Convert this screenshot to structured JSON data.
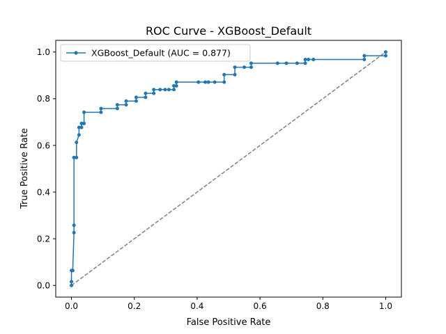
{
  "chart_data": {
    "type": "line",
    "title": "ROC Curve - XGBoost_Default",
    "xlabel": "False Positive Rate",
    "ylabel": "True Positive Rate",
    "xlim": [
      -0.05,
      1.05
    ],
    "ylim": [
      -0.05,
      1.05
    ],
    "xticks": [
      0.0,
      0.2,
      0.4,
      0.6,
      0.8,
      1.0
    ],
    "yticks": [
      0.0,
      0.2,
      0.4,
      0.6,
      0.8,
      1.0
    ],
    "xtick_labels": [
      "0.0",
      "0.2",
      "0.4",
      "0.6",
      "0.8",
      "1.0"
    ],
    "ytick_labels": [
      "0.0",
      "0.2",
      "0.4",
      "0.6",
      "0.8",
      "1.0"
    ],
    "grid": false,
    "legend_position": "top-left",
    "series": [
      {
        "name": "XGBoost_Default (AUC = 0.877)",
        "color": "#1f77b4",
        "style": "solid-with-markers",
        "x": [
          0.0,
          0.0,
          0.0,
          0.004,
          0.004,
          0.008,
          0.008,
          0.008,
          0.008,
          0.016,
          0.016,
          0.024,
          0.024,
          0.032,
          0.032,
          0.04,
          0.04,
          0.094,
          0.094,
          0.146,
          0.146,
          0.174,
          0.174,
          0.206,
          0.206,
          0.236,
          0.236,
          0.262,
          0.262,
          0.282,
          0.298,
          0.31,
          0.326,
          0.326,
          0.334,
          0.334,
          0.404,
          0.426,
          0.436,
          0.456,
          0.486,
          0.486,
          0.52,
          0.52,
          0.55,
          0.572,
          0.572,
          0.656,
          0.684,
          0.718,
          0.744,
          0.744,
          0.754,
          0.77,
          0.932,
          0.932,
          1.0,
          1.0
        ],
        "y": [
          0.0,
          0.016,
          0.064,
          0.064,
          0.064,
          0.226,
          0.258,
          0.548,
          0.548,
          0.548,
          0.613,
          0.645,
          0.677,
          0.677,
          0.694,
          0.694,
          0.742,
          0.742,
          0.758,
          0.758,
          0.774,
          0.774,
          0.79,
          0.79,
          0.806,
          0.806,
          0.823,
          0.823,
          0.839,
          0.839,
          0.839,
          0.839,
          0.839,
          0.855,
          0.855,
          0.871,
          0.871,
          0.871,
          0.871,
          0.871,
          0.871,
          0.903,
          0.903,
          0.935,
          0.935,
          0.935,
          0.952,
          0.952,
          0.952,
          0.952,
          0.952,
          0.968,
          0.968,
          0.968,
          0.968,
          0.984,
          0.984,
          1.0
        ]
      },
      {
        "color": "#808080",
        "style": "dashed",
        "x": [
          0.0,
          1.0
        ],
        "y": [
          0.0,
          1.0
        ]
      }
    ]
  }
}
